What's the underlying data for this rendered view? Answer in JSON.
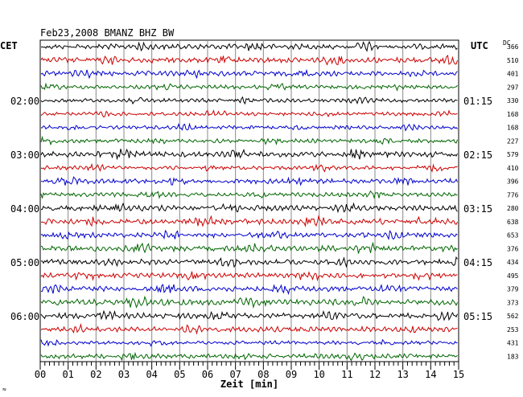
{
  "chart_data": {
    "type": "line",
    "title": "Feb23,2008   BMANZ BHZ BW",
    "xlabel": "Zeit [min]",
    "x_ticks": [
      "00",
      "01",
      "02",
      "03",
      "04",
      "05",
      "06",
      "07",
      "08",
      "09",
      "10",
      "11",
      "12",
      "13",
      "14",
      "15"
    ],
    "xlim": [
      0,
      15
    ],
    "left_header": "CET",
    "right_header": "UTC",
    "dc_header": "DC",
    "trace_colors": [
      "#000000",
      "#cc0000",
      "#0000cc",
      "#006600"
    ],
    "rows_per_hour": 4,
    "left_times": [
      {
        "row": 4,
        "label": "02:00"
      },
      {
        "row": 8,
        "label": "03:00"
      },
      {
        "row": 12,
        "label": "04:00"
      },
      {
        "row": 16,
        "label": "05:00"
      },
      {
        "row": 20,
        "label": "06:00"
      }
    ],
    "right_times": [
      {
        "row": 4,
        "label": "01:15"
      },
      {
        "row": 8,
        "label": "02:15"
      },
      {
        "row": 12,
        "label": "03:15"
      },
      {
        "row": 16,
        "label": "04:15"
      },
      {
        "row": 20,
        "label": "05:15"
      }
    ],
    "dc_values": [
      "366",
      "510",
      "401",
      "297",
      "330",
      "168",
      "168",
      "227",
      "579",
      "410",
      "396",
      "776",
      "280",
      "638",
      "653",
      "376",
      "434",
      "495",
      "379",
      "373",
      "562",
      "253",
      "431",
      "183"
    ],
    "footer_mark": "≈"
  }
}
